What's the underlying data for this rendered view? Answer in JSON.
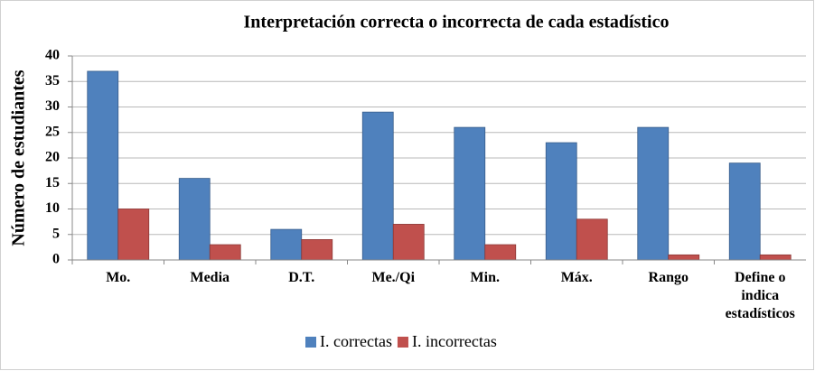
{
  "chart_data": {
    "type": "bar",
    "title": "Interpretación correcta o incorrecta de cada estadístico",
    "y_label": "Número de estudiantes",
    "categories": [
      "Mo.",
      "Media",
      "D.T.",
      "Me./Qi",
      "Min.",
      "Máx.",
      "Rango",
      "Define o indica estadísticos"
    ],
    "series": [
      {
        "name": "I. correctas",
        "color": "#4f81bd",
        "values": [
          37,
          16,
          6,
          29,
          26,
          23,
          26,
          19
        ]
      },
      {
        "name": "I. incorrectas",
        "color": "#c0504d",
        "values": [
          10,
          3,
          4,
          7,
          3,
          8,
          1,
          1
        ]
      }
    ],
    "ylim": [
      0,
      40
    ],
    "yticks": [
      0,
      5,
      10,
      15,
      20,
      25,
      30,
      35,
      40
    ],
    "grid": true,
    "legend": "bottom"
  }
}
